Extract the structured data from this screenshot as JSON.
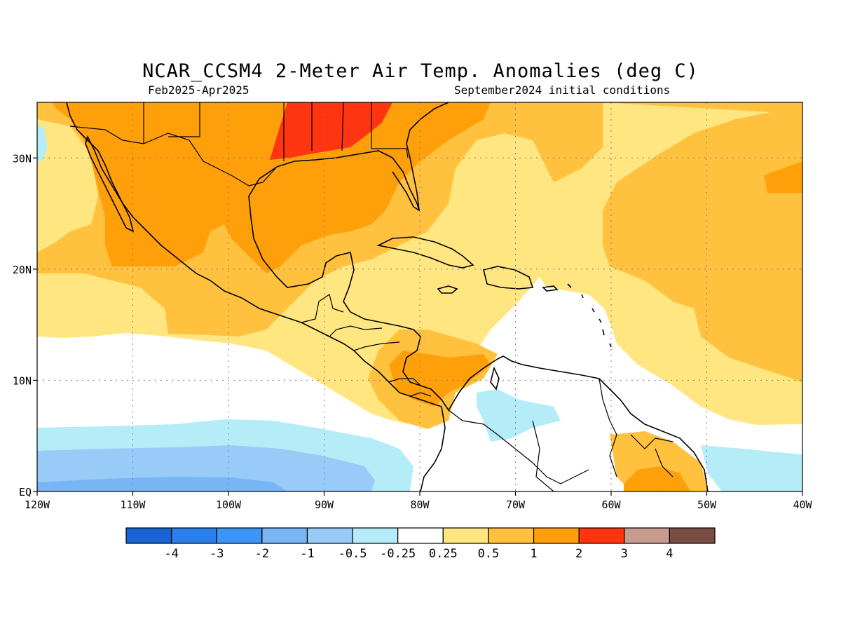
{
  "header": {
    "title": "NCAR_CCSM4 2-Meter Air Temp. Anomalies (deg C)",
    "period": "Feb2025-Apr2025",
    "init": "September2024 initial conditions"
  },
  "map": {
    "lon_range": [
      -120,
      -40
    ],
    "lat_range": [
      0,
      35
    ],
    "x_ticks": [
      {
        "lon": -120,
        "label": "120W"
      },
      {
        "lon": -110,
        "label": "110W"
      },
      {
        "lon": -100,
        "label": "100W"
      },
      {
        "lon": -90,
        "label": "90W"
      },
      {
        "lon": -80,
        "label": "80W"
      },
      {
        "lon": -70,
        "label": "70W"
      },
      {
        "lon": -60,
        "label": "60W"
      },
      {
        "lon": -50,
        "label": "50W"
      },
      {
        "lon": -40,
        "label": "40W"
      }
    ],
    "y_ticks": [
      {
        "lat": 0,
        "label": "EQ"
      },
      {
        "lat": 10,
        "label": "10N"
      },
      {
        "lat": 20,
        "label": "20N"
      },
      {
        "lat": 30,
        "label": "30N"
      }
    ],
    "grid": "dotted"
  },
  "colorbar": {
    "colors": [
      "#1764d2",
      "#2a7fea",
      "#3d95f6",
      "#78b5f5",
      "#98cbf7",
      "#b4edf8",
      "#ffffff",
      "#ffe680",
      "#ffc13e",
      "#ffa00a",
      "#ff3410",
      "#c79c8e",
      "#7a4d44"
    ],
    "labels": [
      "-4",
      "-3",
      "-2",
      "-1",
      "-0.5",
      "-0.25",
      "0.25",
      "0.5",
      "1",
      "2",
      "3",
      "4"
    ]
  },
  "anomaly_regions": [
    {
      "level": "0.25 to 0.5",
      "color": "#ffe680"
    },
    {
      "level": "0.5 to 1",
      "color": "#ffc13e"
    },
    {
      "level": "1 to 2",
      "color": "#ffa00a"
    },
    {
      "level": "2 to 3",
      "color": "#ff3410"
    },
    {
      "level": "-0.5 to -0.25",
      "color": "#b4edf8"
    },
    {
      "level": "-1 to -0.5",
      "color": "#98cbf7"
    },
    {
      "level": "-2 to -1",
      "color": "#78b5f5"
    }
  ]
}
